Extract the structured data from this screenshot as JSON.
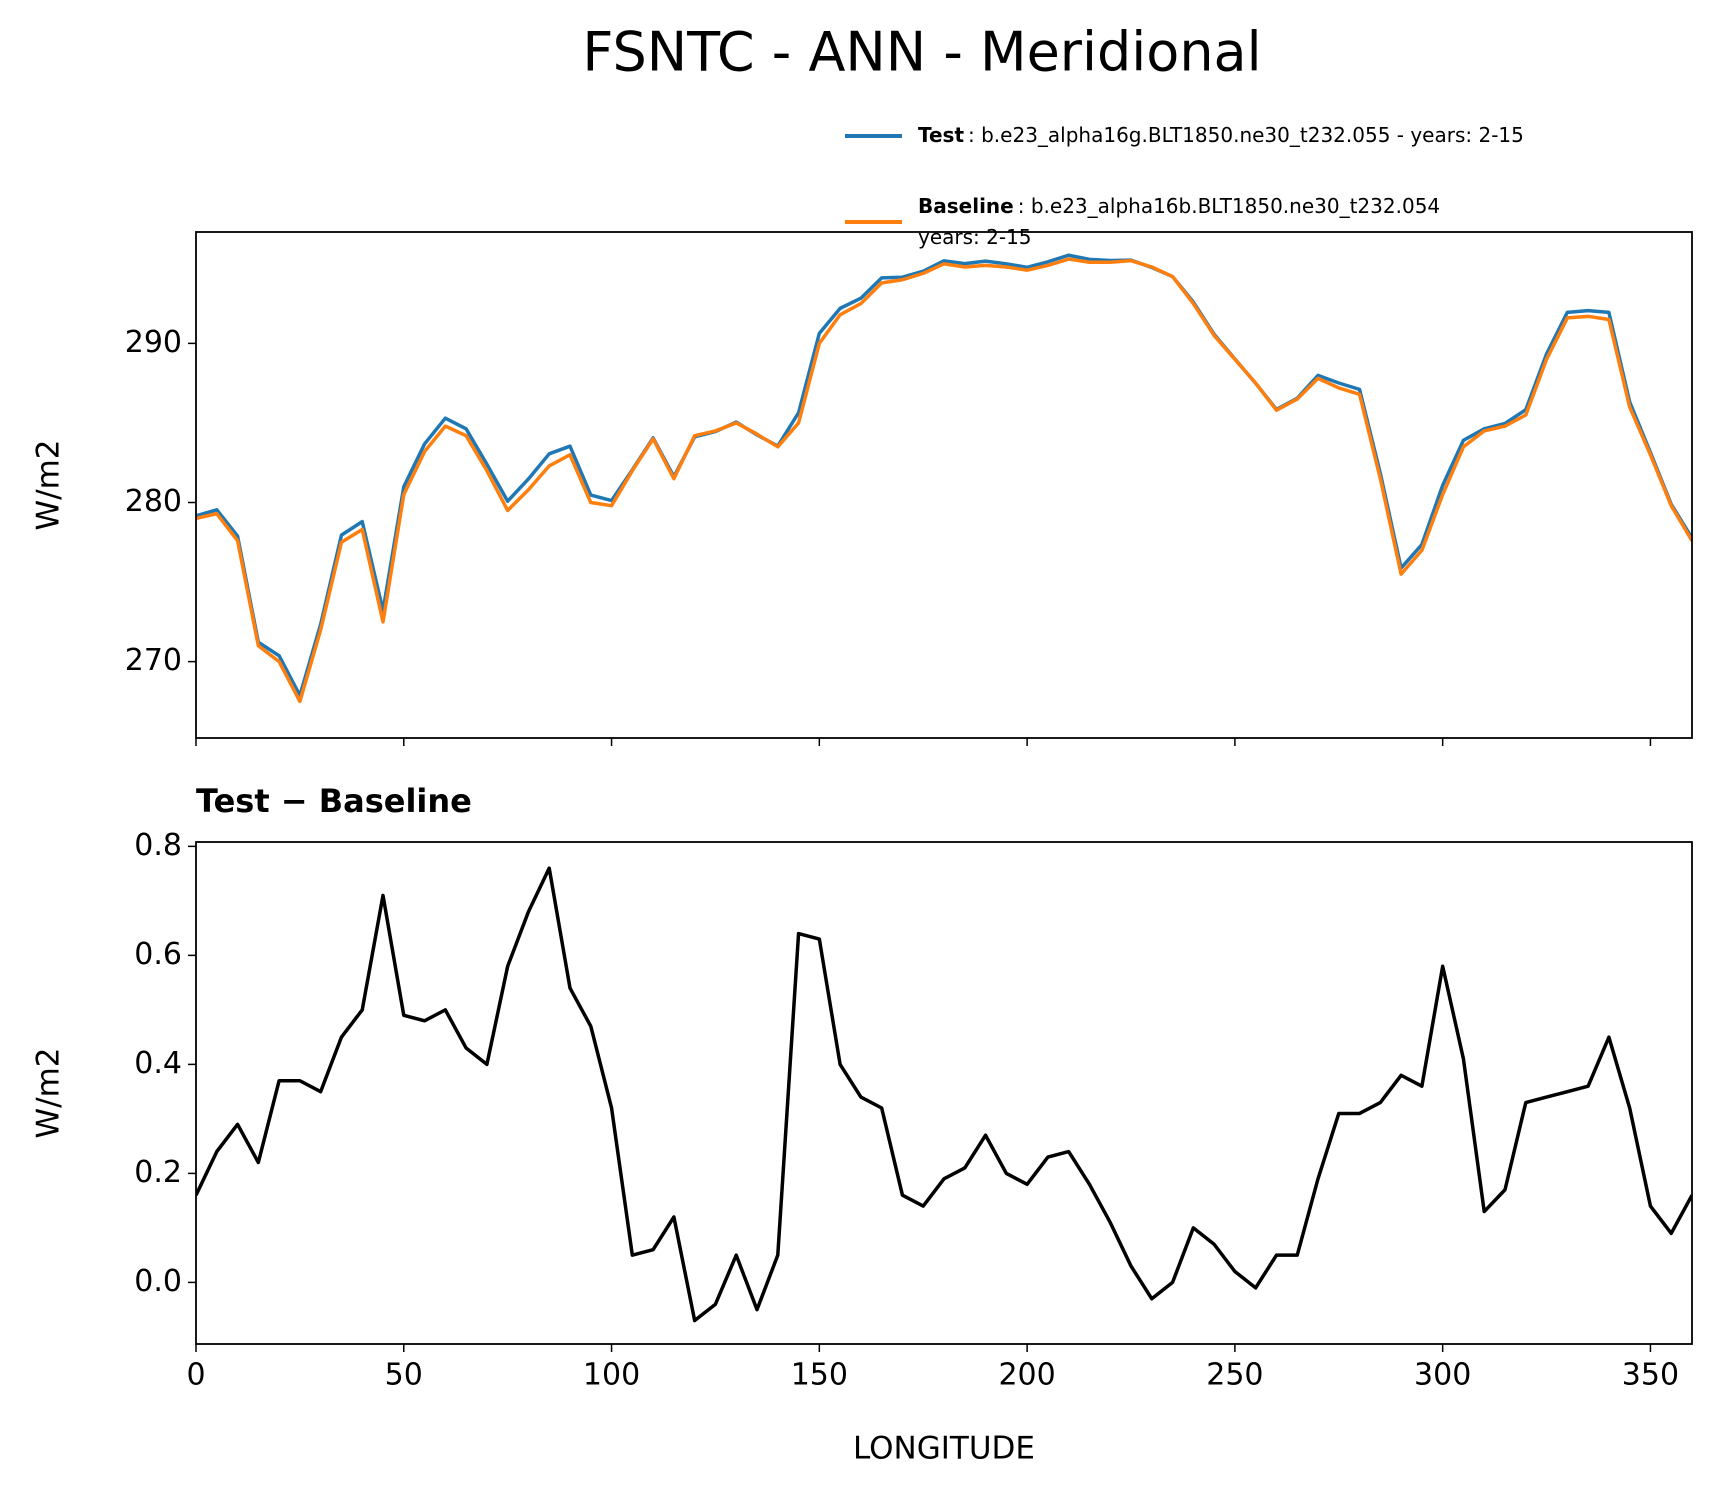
{
  "chart_data": [
    {
      "type": "line",
      "title": "FSNTC - ANN - Meridional",
      "ylabel": "W/m2",
      "x": [
        0,
        5,
        10,
        15,
        20,
        25,
        30,
        35,
        40,
        45,
        50,
        55,
        60,
        65,
        70,
        75,
        80,
        85,
        90,
        95,
        100,
        105,
        110,
        115,
        120,
        125,
        130,
        135,
        140,
        145,
        150,
        155,
        160,
        165,
        170,
        175,
        180,
        185,
        190,
        195,
        200,
        205,
        210,
        215,
        220,
        225,
        230,
        235,
        240,
        245,
        250,
        255,
        260,
        265,
        270,
        275,
        280,
        285,
        290,
        295,
        300,
        305,
        310,
        315,
        320,
        325,
        330,
        335,
        340,
        345,
        350,
        355,
        360
      ],
      "series": [
        {
          "name": "Test",
          "description": [
            ": b.e23_alpha16g.BLT1850.ne30_t232.055 - years: 2-15"
          ],
          "color": "#1f77b4",
          "values": [
            279.16,
            279.54,
            277.89,
            271.22,
            270.37,
            267.87,
            272.35,
            277.95,
            278.8,
            273.21,
            280.99,
            283.68,
            285.3,
            284.63,
            282.4,
            280.08,
            281.48,
            283.06,
            283.54,
            280.47,
            280.12,
            282.05,
            284.06,
            281.62,
            284.13,
            284.46,
            285.05,
            284.25,
            283.55,
            285.64,
            290.63,
            292.2,
            292.84,
            294.12,
            294.16,
            294.54,
            295.19,
            295.01,
            295.17,
            295,
            294.78,
            295.13,
            295.54,
            295.28,
            295.21,
            295.23,
            294.77,
            294.2,
            292.6,
            290.57,
            289.02,
            287.49,
            285.85,
            286.55,
            287.99,
            287.51,
            287.11,
            281.83,
            275.88,
            277.36,
            281.08,
            283.91,
            284.63,
            284.97,
            285.83,
            289.34,
            291.95,
            292.06,
            291.95,
            286.32,
            283.14,
            279.89,
            277.76
          ]
        },
        {
          "name": "Baseline",
          "description": [
            ": b.e23_alpha16b.BLT1850.ne30_t232.054",
            "years: 2-15"
          ],
          "color": "#ff7f0e",
          "values": [
            279.0,
            279.3,
            277.6,
            271.0,
            270.0,
            267.5,
            272.0,
            277.5,
            278.3,
            272.5,
            280.5,
            283.2,
            284.8,
            284.2,
            282.0,
            279.5,
            280.8,
            282.3,
            283.0,
            280.0,
            279.8,
            282.0,
            284.0,
            281.5,
            284.2,
            284.5,
            285.0,
            284.3,
            283.5,
            285.0,
            290.0,
            291.8,
            292.5,
            293.8,
            294.0,
            294.4,
            295.0,
            294.8,
            294.9,
            294.8,
            294.6,
            294.9,
            295.3,
            295.1,
            295.1,
            295.2,
            294.8,
            294.2,
            292.5,
            290.5,
            289.0,
            287.5,
            285.8,
            286.5,
            287.8,
            287.2,
            286.8,
            281.5,
            275.5,
            277.0,
            280.5,
            283.5,
            284.5,
            284.8,
            285.5,
            289.0,
            291.6,
            291.7,
            291.5,
            286.0,
            283.0,
            279.8,
            277.6
          ]
        }
      ],
      "xlim": [
        0,
        360
      ],
      "xticks": [
        0,
        50,
        100,
        150,
        200,
        250,
        300,
        350
      ],
      "xtick_labels": false,
      "ylim": [
        265.2,
        297.0
      ],
      "yticks": [
        270,
        280,
        290
      ],
      "legend": "upper right"
    },
    {
      "type": "line",
      "title": "Test − Baseline",
      "xlabel": "LONGITUDE",
      "ylabel": "W/m2",
      "x": [
        0,
        5,
        10,
        15,
        20,
        25,
        30,
        35,
        40,
        45,
        50,
        55,
        60,
        65,
        70,
        75,
        80,
        85,
        90,
        95,
        100,
        105,
        110,
        115,
        120,
        125,
        130,
        135,
        140,
        145,
        150,
        155,
        160,
        165,
        170,
        175,
        180,
        185,
        190,
        195,
        200,
        205,
        210,
        215,
        220,
        225,
        230,
        235,
        240,
        245,
        250,
        255,
        260,
        265,
        270,
        275,
        280,
        285,
        290,
        295,
        300,
        305,
        310,
        315,
        320,
        325,
        330,
        335,
        340,
        345,
        350,
        355,
        360
      ],
      "series": [
        {
          "color": "#000000",
          "values": [
            0.16,
            0.24,
            0.29,
            0.22,
            0.37,
            0.37,
            0.35,
            0.45,
            0.5,
            0.71,
            0.49,
            0.48,
            0.5,
            0.43,
            0.4,
            0.58,
            0.68,
            0.76,
            0.54,
            0.47,
            0.32,
            0.05,
            0.06,
            0.12,
            -0.07,
            -0.04,
            0.05,
            -0.05,
            0.05,
            0.64,
            0.63,
            0.4,
            0.34,
            0.32,
            0.16,
            0.14,
            0.19,
            0.21,
            0.27,
            0.2,
            0.18,
            0.23,
            0.24,
            0.18,
            0.11,
            0.03,
            -0.03,
            0.0,
            0.1,
            0.07,
            0.02,
            -0.01,
            0.05,
            0.05,
            0.19,
            0.31,
            0.31,
            0.33,
            0.38,
            0.36,
            0.58,
            0.41,
            0.13,
            0.17,
            0.33,
            0.34,
            0.35,
            0.36,
            0.45,
            0.32,
            0.14,
            0.09,
            0.16
          ]
        }
      ],
      "xlim": [
        0,
        360
      ],
      "xticks": [
        0,
        50,
        100,
        150,
        200,
        250,
        300,
        350
      ],
      "ylim": [
        -0.113,
        0.808
      ],
      "yticks": [
        {
          "value": 0,
          "label": "0.0"
        },
        0.2,
        0.4,
        0.6,
        0.8
      ]
    }
  ]
}
